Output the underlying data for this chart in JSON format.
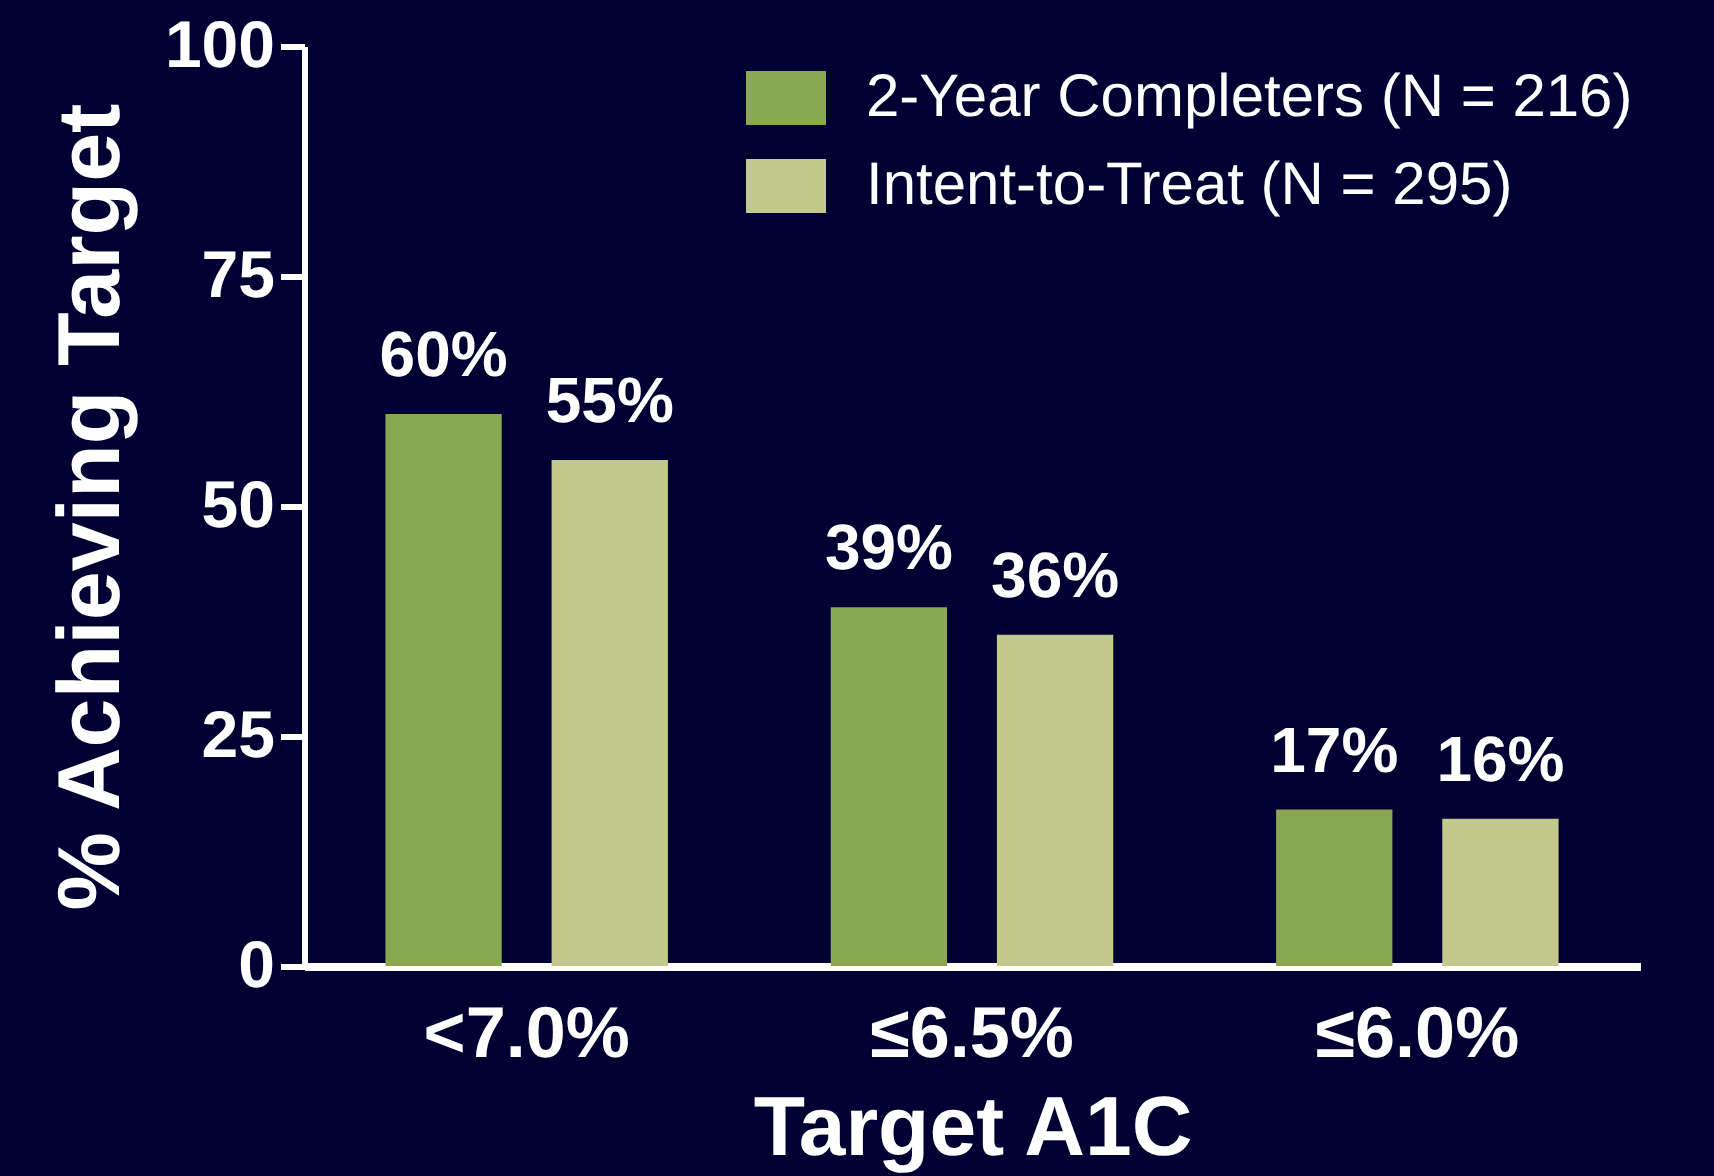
{
  "chart_data": {
    "type": "bar",
    "categories": [
      "<7.0%",
      "≤6.5%",
      "≤6.0%"
    ],
    "xlabel": "Target A1C",
    "ylabel": "% Achieving Target",
    "ylim": [
      0,
      100
    ],
    "yticks": [
      0,
      25,
      50,
      75,
      100
    ],
    "legend": "top right",
    "series": [
      {
        "name": "2-Year Completers (N = 216)",
        "color": "#8aa84f",
        "values": [
          60,
          39,
          17
        ],
        "value_labels": [
          "60%",
          "39%",
          "17%"
        ]
      },
      {
        "name": "Intent-to-Treat (N = 295)",
        "color": "#c3c98c",
        "values": [
          55,
          36,
          16
        ],
        "value_labels": [
          "55%",
          "36%",
          "16%"
        ]
      }
    ]
  }
}
